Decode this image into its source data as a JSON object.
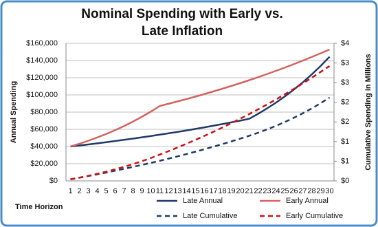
{
  "chart_data": {
    "type": "line",
    "title": "Nominal Spending with Early vs. Late Inflation",
    "x_label": "Time Horizon",
    "y_label": "Annual Spending",
    "y2_label": "Cumulative Spending in Millions",
    "categories": [
      1,
      2,
      3,
      4,
      5,
      6,
      7,
      8,
      9,
      10,
      11,
      12,
      13,
      14,
      15,
      16,
      17,
      18,
      19,
      20,
      21,
      22,
      23,
      24,
      25,
      26,
      27,
      28,
      29,
      30
    ],
    "ylim": [
      0,
      160000
    ],
    "yticks": [
      {
        "value": 0,
        "label": "$0"
      },
      {
        "value": 20000,
        "label": "$20,000"
      },
      {
        "value": 40000,
        "label": "$40,000"
      },
      {
        "value": 60000,
        "label": "$60,000"
      },
      {
        "value": 80000,
        "label": "$80,000"
      },
      {
        "value": 100000,
        "label": "$100,000"
      },
      {
        "value": 120000,
        "label": "$120,000"
      },
      {
        "value": 140000,
        "label": "$140,000"
      },
      {
        "value": 160000,
        "label": "$160,000"
      }
    ],
    "y2lim": [
      0,
      3.5
    ],
    "y2ticks": [
      {
        "value": 0,
        "label": "$0"
      },
      {
        "value": 0.5,
        "label": "$1"
      },
      {
        "value": 1,
        "label": "$1"
      },
      {
        "value": 1.5,
        "label": "$2"
      },
      {
        "value": 2,
        "label": "$2"
      },
      {
        "value": 2.5,
        "label": "$3"
      },
      {
        "value": 3,
        "label": "$3"
      },
      {
        "value": 3.5,
        "label": "$4"
      }
    ],
    "grid": true,
    "legend": "bottom",
    "series": [
      {
        "name": "Late Annual",
        "color": "#1f3a68",
        "line_style": "solid",
        "values": [
          40000,
          41200,
          42400,
          43700,
          45000,
          46400,
          47800,
          49200,
          50700,
          52200,
          53800,
          55400,
          57000,
          58700,
          60500,
          62300,
          64200,
          66100,
          68100,
          70100,
          72200,
          78000,
          84300,
          91000,
          98300,
          106200,
          114600,
          123800,
          133700,
          144400
        ]
      },
      {
        "name": "Early Annual",
        "color": "#d4625f",
        "line_style": "solid",
        "values": [
          40000,
          43200,
          46700,
          50500,
          54600,
          59000,
          63800,
          69000,
          74600,
          80600,
          87200,
          89800,
          92500,
          95200,
          98100,
          101000,
          104100,
          107200,
          110400,
          113700,
          117100,
          120600,
          124300,
          128000,
          131800,
          135800,
          139900,
          144100,
          148400,
          152800
        ]
      },
      {
        "name": "Late Cumulative",
        "color": "#1f3a68",
        "line_style": "dashed",
        "axis": "y2",
        "values": [
          0.04,
          0.081,
          0.124,
          0.167,
          0.212,
          0.259,
          0.307,
          0.356,
          0.406,
          0.459,
          0.512,
          0.568,
          0.625,
          0.684,
          0.744,
          0.806,
          0.871,
          0.937,
          1.005,
          1.075,
          1.147,
          1.225,
          1.309,
          1.4,
          1.499,
          1.605,
          1.72,
          1.843,
          1.977,
          2.121
        ]
      },
      {
        "name": "Early Cumulative",
        "color": "#cc1111",
        "line_style": "dashed",
        "axis": "y2",
        "values": [
          0.04,
          0.083,
          0.13,
          0.181,
          0.235,
          0.294,
          0.358,
          0.427,
          0.502,
          0.582,
          0.67,
          0.759,
          0.852,
          0.947,
          1.045,
          1.146,
          1.25,
          1.358,
          1.468,
          1.582,
          1.699,
          1.82,
          1.944,
          2.072,
          2.203,
          2.339,
          2.479,
          2.623,
          2.772,
          2.924
        ]
      }
    ]
  }
}
